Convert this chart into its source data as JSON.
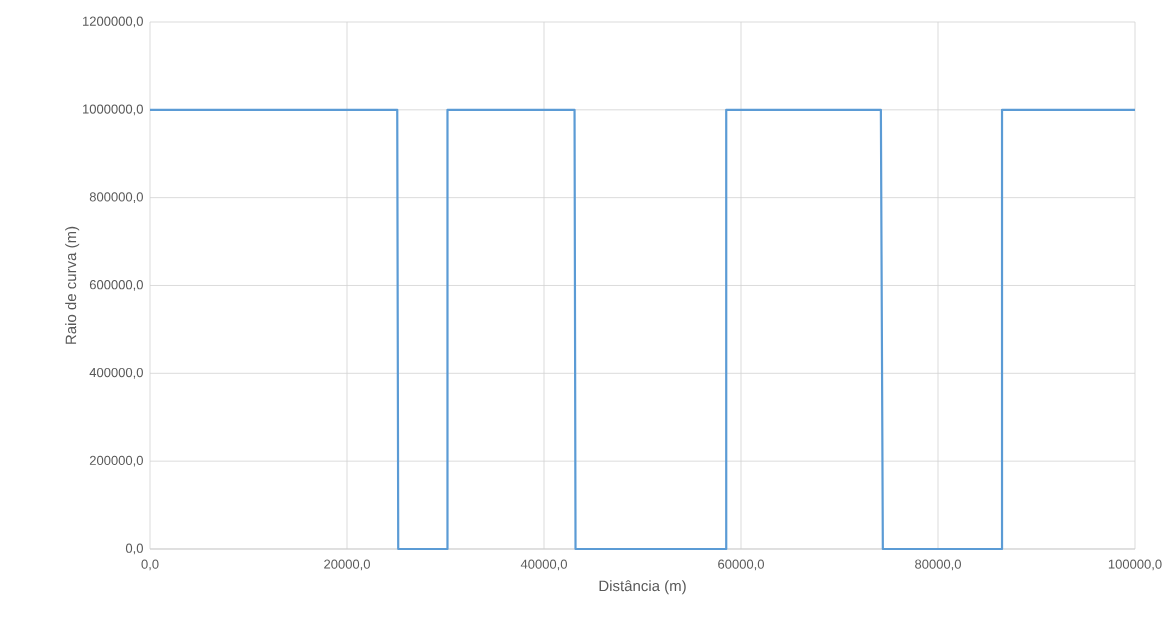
{
  "chart_data": {
    "type": "line",
    "xlabel": "Distância (m)",
    "ylabel": "Raio de curva (m)",
    "x": [
      0,
      25100,
      25200,
      30200,
      30200,
      43100,
      43200,
      58500,
      58500,
      74200,
      74400,
      86500,
      86500,
      100000
    ],
    "series": [
      {
        "color": "#5b9bd5",
        "values": [
          1000000,
          1000000,
          0,
          0,
          1000000,
          1000000,
          0,
          0,
          1000000,
          1000000,
          0,
          0,
          1000000,
          1000000
        ]
      }
    ],
    "xlim": [
      0,
      100000
    ],
    "ylim": [
      0,
      1200000
    ],
    "xticks": [
      {
        "value": 0,
        "label": "0,0"
      },
      {
        "value": 20000,
        "label": "20000,0"
      },
      {
        "value": 40000,
        "label": "40000,0"
      },
      {
        "value": 60000,
        "label": "60000,0"
      },
      {
        "value": 80000,
        "label": "80000,0"
      },
      {
        "value": 100000,
        "label": "100000,0"
      }
    ],
    "yticks": [
      {
        "value": 0,
        "label": "0,0"
      },
      {
        "value": 200000,
        "label": "200000,0"
      },
      {
        "value": 400000,
        "label": "400000,0"
      },
      {
        "value": 600000,
        "label": "600000,0"
      },
      {
        "value": 800000,
        "label": "800000,0"
      },
      {
        "value": 1000000,
        "label": "1000000,0"
      },
      {
        "value": 1200000,
        "label": "1200000,0"
      }
    ],
    "grid": true,
    "marker": "none",
    "line_style": "solid"
  }
}
